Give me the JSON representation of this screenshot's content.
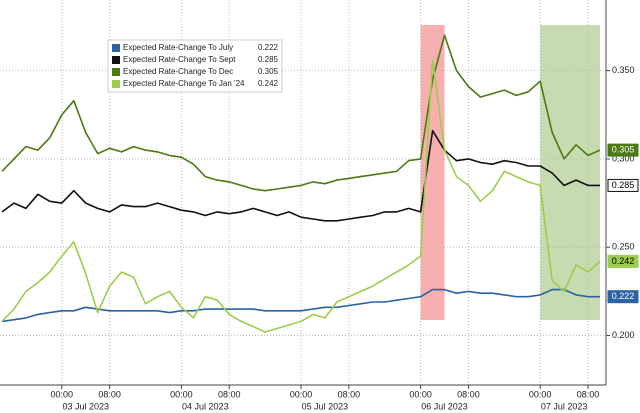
{
  "chart_data": {
    "type": "line",
    "x": [
      "2023-07-02 14:00",
      "2023-07-02 16:00",
      "2023-07-02 18:00",
      "2023-07-02 20:00",
      "2023-07-02 22:00",
      "2023-07-03 00:00",
      "2023-07-03 02:00",
      "2023-07-03 04:00",
      "2023-07-03 06:00",
      "2023-07-03 08:00",
      "2023-07-03 10:00",
      "2023-07-03 12:00",
      "2023-07-03 14:00",
      "2023-07-03 20:00",
      "2023-07-03 22:00",
      "2023-07-04 00:00",
      "2023-07-04 02:00",
      "2023-07-04 04:00",
      "2023-07-04 06:00",
      "2023-07-04 08:00",
      "2023-07-04 10:00",
      "2023-07-04 12:00",
      "2023-07-04 14:00",
      "2023-07-04 20:00",
      "2023-07-04 22:00",
      "2023-07-05 00:00",
      "2023-07-05 02:00",
      "2023-07-05 04:00",
      "2023-07-05 06:00",
      "2023-07-05 08:00",
      "2023-07-05 10:00",
      "2023-07-05 12:00",
      "2023-07-05 14:00",
      "2023-07-05 20:00",
      "2023-07-05 22:00",
      "2023-07-06 00:00",
      "2023-07-06 02:00",
      "2023-07-06 04:00",
      "2023-07-06 06:00",
      "2023-07-06 08:00",
      "2023-07-06 10:00",
      "2023-07-06 12:00",
      "2023-07-06 14:00",
      "2023-07-06 20:00",
      "2023-07-06 22:00",
      "2023-07-07 00:00",
      "2023-07-07 02:00",
      "2023-07-07 04:00",
      "2023-07-07 06:00",
      "2023-07-07 08:00",
      "2023-07-07 10:00"
    ],
    "xticks": [
      {
        "value": "2023-07-03 00:00",
        "label": "00:00"
      },
      {
        "value": "2023-07-03 08:00",
        "label": "08:00"
      },
      {
        "value": "2023-07-04 00:00",
        "label": "00:00"
      },
      {
        "value": "2023-07-04 08:00",
        "label": "08:00"
      },
      {
        "value": "2023-07-05 00:00",
        "label": "00:00"
      },
      {
        "value": "2023-07-05 08:00",
        "label": "08:00"
      },
      {
        "value": "2023-07-06 00:00",
        "label": "00:00"
      },
      {
        "value": "2023-07-06 08:00",
        "label": "08:00"
      },
      {
        "value": "2023-07-07 00:00",
        "label": "00:00"
      },
      {
        "value": "2023-07-07 08:00",
        "label": "08:00"
      }
    ],
    "x_groups": [
      "03 Jul 2023",
      "04 Jul 2023",
      "05 Jul 2023",
      "06 Jul 2023",
      "07 Jul 2023"
    ],
    "ylim": [
      0.172,
      0.39
    ],
    "yticks": [
      {
        "value": 0.2,
        "label": "0.200"
      },
      {
        "value": 0.25,
        "label": "0.250"
      },
      {
        "value": 0.3,
        "label": "0.300"
      },
      {
        "value": 0.35,
        "label": "0.350"
      }
    ],
    "grid": true,
    "highlights": [
      {
        "from": "2023-07-06 00:00",
        "to": "2023-07-06 04:00",
        "color": "rgba(240,110,110,0.55)"
      },
      {
        "from": "2023-07-07 00:00",
        "to": "2023-07-07 10:00",
        "color": "rgba(130,175,80,0.45)"
      }
    ],
    "series": [
      {
        "name": "Expected Rate-Change To July",
        "color": "#2a62a6",
        "label_text_color": "#ffffff",
        "values": [
          0.208,
          0.209,
          0.21,
          0.212,
          0.213,
          0.214,
          0.214,
          0.216,
          0.215,
          0.214,
          0.214,
          0.214,
          0.214,
          0.214,
          0.213,
          0.214,
          0.214,
          0.215,
          0.215,
          0.215,
          0.215,
          0.215,
          0.214,
          0.214,
          0.214,
          0.214,
          0.215,
          0.216,
          0.216,
          0.217,
          0.218,
          0.219,
          0.219,
          0.22,
          0.221,
          0.222,
          0.226,
          0.226,
          0.224,
          0.225,
          0.224,
          0.224,
          0.223,
          0.222,
          0.222,
          0.223,
          0.226,
          0.226,
          0.223,
          0.222,
          0.222
        ]
      },
      {
        "name": "Expected Rate-Change To Sept",
        "color": "#111111",
        "label_text_color": "#000000",
        "label_fill": "#ffffff",
        "values": [
          0.27,
          0.275,
          0.272,
          0.28,
          0.276,
          0.275,
          0.282,
          0.275,
          0.272,
          0.27,
          0.274,
          0.273,
          0.273,
          0.275,
          0.273,
          0.271,
          0.27,
          0.268,
          0.27,
          0.269,
          0.27,
          0.272,
          0.27,
          0.268,
          0.27,
          0.267,
          0.266,
          0.265,
          0.265,
          0.266,
          0.267,
          0.268,
          0.27,
          0.27,
          0.272,
          0.27,
          0.316,
          0.305,
          0.299,
          0.3,
          0.298,
          0.297,
          0.299,
          0.298,
          0.296,
          0.296,
          0.292,
          0.285,
          0.288,
          0.285,
          0.285
        ]
      },
      {
        "name": "Expected Rate-Change To Dec",
        "color": "#4a7a12",
        "label_text_color": "#ffffff",
        "values": [
          0.293,
          0.3,
          0.307,
          0.305,
          0.312,
          0.325,
          0.333,
          0.315,
          0.303,
          0.306,
          0.304,
          0.307,
          0.305,
          0.304,
          0.302,
          0.301,
          0.297,
          0.29,
          0.288,
          0.287,
          0.285,
          0.283,
          0.282,
          0.283,
          0.284,
          0.285,
          0.287,
          0.286,
          0.288,
          0.289,
          0.29,
          0.291,
          0.292,
          0.293,
          0.299,
          0.3,
          0.345,
          0.37,
          0.35,
          0.341,
          0.335,
          0.337,
          0.339,
          0.336,
          0.338,
          0.344,
          0.315,
          0.3,
          0.308,
          0.302,
          0.305
        ]
      },
      {
        "name": "Expected Rate-Change To Jan '24",
        "color": "#9ccd4c",
        "label_text_color": "#000000",
        "values": [
          0.208,
          0.215,
          0.225,
          0.23,
          0.236,
          0.245,
          0.253,
          0.235,
          0.213,
          0.228,
          0.236,
          0.233,
          0.218,
          0.222,
          0.225,
          0.216,
          0.21,
          0.222,
          0.22,
          0.212,
          0.208,
          0.205,
          0.202,
          0.204,
          0.206,
          0.208,
          0.212,
          0.21,
          0.219,
          0.222,
          0.225,
          0.228,
          0.232,
          0.236,
          0.24,
          0.245,
          0.356,
          0.305,
          0.29,
          0.285,
          0.276,
          0.282,
          0.293,
          0.29,
          0.287,
          0.285,
          0.231,
          0.225,
          0.24,
          0.236,
          0.242
        ]
      }
    ]
  }
}
